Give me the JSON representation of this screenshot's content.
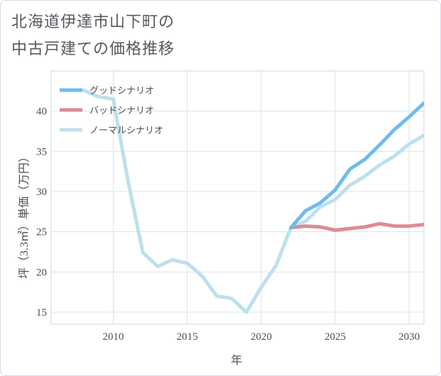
{
  "title_lines": [
    "北海道伊達市山下町の",
    "中古戸建ての価格推移"
  ],
  "chart_data": {
    "type": "line",
    "xlabel": "年",
    "ylabel": "坪（3.3㎡）単価（万円）",
    "xlim": [
      2005.8,
      2031
    ],
    "ylim": [
      13.5,
      45
    ],
    "x_ticks": [
      2010,
      2015,
      2020,
      2025,
      2030
    ],
    "y_ticks": [
      15,
      20,
      25,
      30,
      35,
      40
    ],
    "grid": true,
    "legend_position": "top-left",
    "series": [
      {
        "name": "グッドシナリオ",
        "color": "#6dbcee",
        "points": [
          [
            2022,
            25.5
          ],
          [
            2023,
            27.6
          ],
          [
            2024,
            28.6
          ],
          [
            2025,
            30.2
          ],
          [
            2026,
            32.8
          ],
          [
            2027,
            34
          ],
          [
            2028,
            35.8
          ],
          [
            2029,
            37.7
          ],
          [
            2030,
            39.3
          ],
          [
            2031,
            41
          ]
        ]
      },
      {
        "name": "バッドシナリオ",
        "color": "#de8a94",
        "points": [
          [
            2022,
            25.5
          ],
          [
            2023,
            25.7
          ],
          [
            2024,
            25.6
          ],
          [
            2025,
            25.2
          ],
          [
            2026,
            25.4
          ],
          [
            2027,
            25.6
          ],
          [
            2028,
            26
          ],
          [
            2029,
            25.7
          ],
          [
            2030,
            25.7
          ],
          [
            2031,
            25.9
          ]
        ]
      },
      {
        "name": "ノーマルシナリオ",
        "color": "#bde0ee",
        "points": [
          [
            2008,
            42.6
          ],
          [
            2009,
            41.8
          ],
          [
            2010,
            41.5
          ],
          [
            2011,
            31.3
          ],
          [
            2012,
            22.4
          ],
          [
            2013,
            20.7
          ],
          [
            2014,
            21.5
          ],
          [
            2015,
            21.1
          ],
          [
            2016,
            19.5
          ],
          [
            2017,
            17
          ],
          [
            2018,
            16.7
          ],
          [
            2019,
            15
          ],
          [
            2020,
            18.1
          ],
          [
            2021,
            20.8
          ],
          [
            2022,
            25.5
          ],
          [
            2023,
            26.3
          ],
          [
            2024,
            28.1
          ],
          [
            2025,
            29
          ],
          [
            2026,
            30.8
          ],
          [
            2027,
            31.9
          ],
          [
            2028,
            33.3
          ],
          [
            2029,
            34.4
          ],
          [
            2030,
            35.9
          ],
          [
            2031,
            37
          ]
        ]
      }
    ]
  }
}
